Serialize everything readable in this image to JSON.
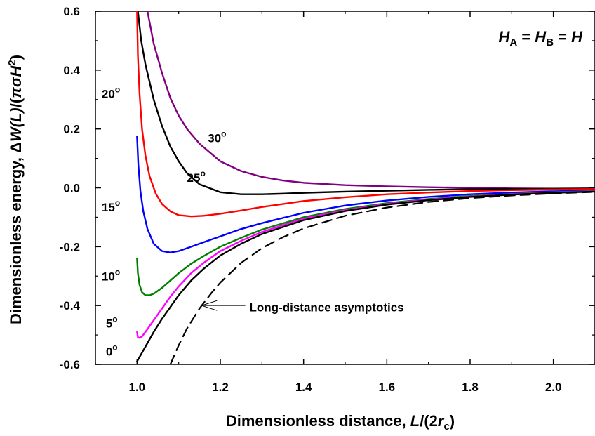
{
  "chart_data": {
    "type": "line",
    "xlabel": {
      "text": "Dimensionless distance, ",
      "italic": "L",
      "after_italic": "/(2",
      "italic2": "r",
      "sub2": "c",
      "close": ")"
    },
    "ylabel": {
      "text": "Dimensionless energy, Δ",
      "italic": "W(L)",
      "after_italic": "/(",
      "symbol": "πσ",
      "italic2": "H",
      "sup": "2",
      "close": ")"
    },
    "corner_label": {
      "a": "H",
      "sub_a": "A",
      "eq": " = ",
      "b": "H",
      "sub_b": "B",
      "eq2": " = ",
      "c": "H"
    },
    "xlim": [
      0.9,
      2.1
    ],
    "ylim": [
      -0.6,
      0.6
    ],
    "x_ticks": [
      "1.0",
      "1.2",
      "1.4",
      "1.6",
      "1.8",
      "2.0"
    ],
    "x_tick_values": [
      1.0,
      1.2,
      1.4,
      1.6,
      1.8,
      2.0
    ],
    "y_ticks": [
      "0.6",
      "0.4",
      "0.2",
      "0.0",
      "-0.2",
      "-0.4",
      "-0.6"
    ],
    "y_tick_values": [
      0.6,
      0.4,
      0.2,
      0.0,
      -0.2,
      -0.4,
      -0.6
    ],
    "grid": false,
    "series": [
      {
        "name": "30",
        "unit": "o",
        "color": "#800080",
        "style": "solid",
        "x": [
          1.025,
          1.04,
          1.06,
          1.08,
          1.1,
          1.12,
          1.15,
          1.2,
          1.25,
          1.3,
          1.35,
          1.4,
          1.5,
          1.6,
          1.7,
          1.8,
          1.9,
          2.0,
          2.1
        ],
        "y": [
          0.6,
          0.49,
          0.39,
          0.305,
          0.245,
          0.2,
          0.15,
          0.09,
          0.057,
          0.037,
          0.025,
          0.017,
          0.009,
          0.005,
          0.002,
          0.0,
          -0.002,
          -0.003,
          -0.003
        ]
      },
      {
        "name": "25",
        "unit": "o",
        "color": "#000000",
        "style": "solid",
        "x": [
          1.002,
          1.01,
          1.02,
          1.04,
          1.06,
          1.08,
          1.1,
          1.12,
          1.15,
          1.2,
          1.25,
          1.3,
          1.35,
          1.4,
          1.5,
          1.6,
          1.7,
          1.8,
          1.9,
          2.0,
          2.1
        ],
        "y": [
          0.6,
          0.5,
          0.42,
          0.3,
          0.21,
          0.14,
          0.09,
          0.05,
          0.012,
          -0.015,
          -0.022,
          -0.022,
          -0.02,
          -0.017,
          -0.013,
          -0.01,
          -0.007,
          -0.005,
          -0.004,
          -0.003,
          -0.002
        ]
      },
      {
        "name": "20",
        "unit": "o",
        "color": "#ff0000",
        "style": "solid",
        "x": [
          1.0,
          1.002,
          1.006,
          1.012,
          1.02,
          1.03,
          1.045,
          1.06,
          1.08,
          1.1,
          1.13,
          1.16,
          1.2,
          1.25,
          1.3,
          1.4,
          1.5,
          1.6,
          1.7,
          1.8,
          1.9,
          2.0,
          2.1
        ],
        "y": [
          0.6,
          0.45,
          0.32,
          0.2,
          0.11,
          0.04,
          -0.02,
          -0.055,
          -0.08,
          -0.093,
          -0.097,
          -0.095,
          -0.088,
          -0.077,
          -0.065,
          -0.045,
          -0.032,
          -0.022,
          -0.016,
          -0.011,
          -0.008,
          -0.006,
          -0.004
        ]
      },
      {
        "name": "15",
        "unit": "o",
        "color": "#0000ff",
        "style": "solid",
        "x": [
          1.0,
          1.003,
          1.008,
          1.015,
          1.025,
          1.04,
          1.06,
          1.08,
          1.1,
          1.13,
          1.16,
          1.2,
          1.25,
          1.3,
          1.4,
          1.5,
          1.6,
          1.7,
          1.8,
          1.9,
          2.0,
          2.1
        ],
        "y": [
          0.175,
          0.08,
          -0.01,
          -0.08,
          -0.14,
          -0.19,
          -0.215,
          -0.22,
          -0.215,
          -0.2,
          -0.185,
          -0.165,
          -0.14,
          -0.12,
          -0.085,
          -0.06,
          -0.043,
          -0.031,
          -0.022,
          -0.016,
          -0.012,
          -0.008
        ]
      },
      {
        "name": "10",
        "unit": "o",
        "color": "#008000",
        "style": "solid",
        "x": [
          1.0,
          1.002,
          1.006,
          1.012,
          1.02,
          1.03,
          1.04,
          1.06,
          1.08,
          1.1,
          1.13,
          1.16,
          1.2,
          1.25,
          1.3,
          1.4,
          1.5,
          1.6,
          1.7,
          1.8,
          1.9,
          2.0,
          2.1
        ],
        "y": [
          -0.24,
          -0.29,
          -0.33,
          -0.355,
          -0.365,
          -0.365,
          -0.36,
          -0.34,
          -0.315,
          -0.29,
          -0.258,
          -0.232,
          -0.2,
          -0.17,
          -0.142,
          -0.1,
          -0.072,
          -0.052,
          -0.038,
          -0.028,
          -0.021,
          -0.015,
          -0.011
        ]
      },
      {
        "name": "5",
        "unit": "o",
        "color": "#ff00ff",
        "style": "solid",
        "x": [
          1.0,
          1.002,
          1.006,
          1.012,
          1.02,
          1.03,
          1.045,
          1.06,
          1.08,
          1.1,
          1.13,
          1.16,
          1.2,
          1.25,
          1.3,
          1.4,
          1.5,
          1.6,
          1.7,
          1.8,
          1.9,
          2.0,
          2.1
        ],
        "y": [
          -0.49,
          -0.508,
          -0.51,
          -0.505,
          -0.49,
          -0.47,
          -0.44,
          -0.41,
          -0.37,
          -0.335,
          -0.29,
          -0.255,
          -0.215,
          -0.18,
          -0.15,
          -0.105,
          -0.076,
          -0.055,
          -0.04,
          -0.03,
          -0.022,
          -0.016,
          -0.012
        ]
      },
      {
        "name": "0",
        "unit": "o",
        "color": "#000000",
        "style": "solid",
        "x": [
          1.0,
          1.01,
          1.02,
          1.04,
          1.06,
          1.08,
          1.1,
          1.13,
          1.16,
          1.2,
          1.25,
          1.3,
          1.4,
          1.5,
          1.6,
          1.7,
          1.8,
          1.9,
          2.0,
          2.1
        ],
        "y": [
          -0.59,
          -0.565,
          -0.54,
          -0.49,
          -0.445,
          -0.405,
          -0.365,
          -0.315,
          -0.275,
          -0.23,
          -0.19,
          -0.157,
          -0.11,
          -0.079,
          -0.057,
          -0.042,
          -0.031,
          -0.023,
          -0.017,
          -0.013
        ]
      },
      {
        "name": "Long-distance asymptotics",
        "color": "#000000",
        "style": "dashed",
        "x": [
          1.08,
          1.1,
          1.12,
          1.15,
          1.18,
          1.2,
          1.25,
          1.3,
          1.35,
          1.4,
          1.5,
          1.6,
          1.7,
          1.8,
          1.9,
          2.0,
          2.1
        ],
        "y": [
          -0.6,
          -0.535,
          -0.478,
          -0.41,
          -0.355,
          -0.322,
          -0.255,
          -0.205,
          -0.168,
          -0.138,
          -0.095,
          -0.067,
          -0.048,
          -0.035,
          -0.026,
          -0.019,
          -0.014
        ]
      }
    ],
    "annotations": {
      "curve_labels": [
        {
          "text": "30",
          "sup": "o",
          "x": 1.17,
          "y": 0.155
        },
        {
          "text": "25",
          "sup": "o",
          "x": 1.12,
          "y": 0.02
        },
        {
          "text": "20",
          "sup": "o",
          "x": 0.915,
          "y": 0.305
        },
        {
          "text": "15",
          "sup": "o",
          "x": 0.915,
          "y": -0.08
        },
        {
          "text": "10",
          "sup": "o",
          "x": 0.915,
          "y": -0.315
        },
        {
          "text": "5",
          "sup": "o",
          "x": 0.925,
          "y": -0.475
        },
        {
          "text": "0",
          "sup": "o",
          "x": 0.925,
          "y": -0.57
        }
      ],
      "arrow_text": "Long-distance asymptotics",
      "arrow_text_pos": {
        "x": 1.27,
        "y": -0.42
      },
      "arrow_tip": {
        "x": 1.155,
        "y": -0.4
      },
      "arrow_tail": {
        "x": 1.26,
        "y": -0.4
      }
    }
  }
}
